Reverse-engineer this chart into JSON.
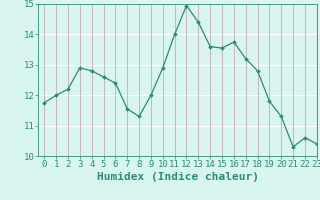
{
  "x": [
    0,
    1,
    2,
    3,
    4,
    5,
    6,
    7,
    8,
    9,
    10,
    11,
    12,
    13,
    14,
    15,
    16,
    17,
    18,
    19,
    20,
    21,
    22,
    23
  ],
  "y": [
    11.75,
    12.0,
    12.2,
    12.9,
    12.8,
    12.6,
    12.4,
    11.55,
    11.3,
    12.0,
    12.9,
    14.0,
    14.95,
    14.4,
    13.6,
    13.55,
    13.75,
    13.2,
    12.8,
    11.8,
    11.3,
    10.3,
    10.6,
    10.4
  ],
  "line_color": "#2e8b78",
  "marker": "D",
  "marker_size": 2,
  "bg_color": "#d8f5ef",
  "grid_color_h": "#c8b8c8",
  "grid_color_v": "#ffffff",
  "xlabel": "Humidex (Indice chaleur)",
  "ylim": [
    10,
    15
  ],
  "xlim": [
    -0.5,
    23
  ],
  "yticks": [
    10,
    11,
    12,
    13,
    14,
    15
  ],
  "xticks": [
    0,
    1,
    2,
    3,
    4,
    5,
    6,
    7,
    8,
    9,
    10,
    11,
    12,
    13,
    14,
    15,
    16,
    17,
    18,
    19,
    20,
    21,
    22,
    23
  ],
  "tick_color": "#2e8b78",
  "label_color": "#2e8b78",
  "xlabel_fontsize": 8,
  "tick_fontsize": 6.5
}
